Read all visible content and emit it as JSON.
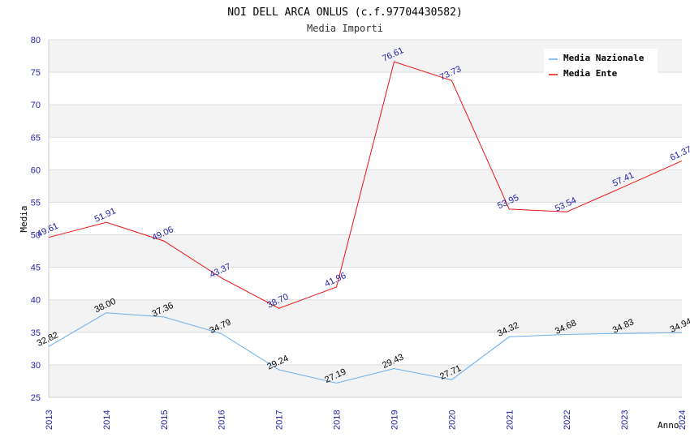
{
  "chart_data": {
    "type": "line",
    "title": "NOI DELL ARCA ONLUS (c.f.97704430582)",
    "subtitle": "Media Importi",
    "xlabel": "Anno",
    "ylabel": "Media",
    "categories": [
      "2013",
      "2014",
      "2015",
      "2016",
      "2017",
      "2018",
      "2019",
      "2020",
      "2021",
      "2022",
      "2023",
      "2024"
    ],
    "ylim": [
      25,
      80
    ],
    "yticks": [
      25,
      30,
      35,
      40,
      45,
      50,
      55,
      60,
      65,
      70,
      75,
      80
    ],
    "grid": "horizontal bands",
    "legend_position": "top-right",
    "series": [
      {
        "name": "Media Nazionale",
        "color": "#6aaee8",
        "values": [
          32.82,
          38.0,
          37.36,
          34.79,
          29.24,
          27.19,
          29.43,
          27.71,
          34.32,
          34.68,
          34.83,
          34.94
        ],
        "labels": [
          "32.82",
          "38.00",
          "37.36",
          "34.79",
          "29.24",
          "27.19",
          "29.43",
          "27.71",
          "34.32",
          "34.68",
          "34.83",
          "34.94"
        ]
      },
      {
        "name": "Media Ente",
        "color": "#ee1111",
        "values": [
          49.61,
          51.91,
          49.06,
          43.37,
          38.7,
          41.96,
          76.61,
          73.73,
          53.95,
          53.54,
          57.41,
          61.37
        ],
        "labels": [
          "49.61",
          "51.91",
          "49.06",
          "43.37",
          "38.70",
          "41.96",
          "76.61",
          "73.73",
          "53.95",
          "53.54",
          "57.41",
          "61.37"
        ]
      }
    ]
  }
}
